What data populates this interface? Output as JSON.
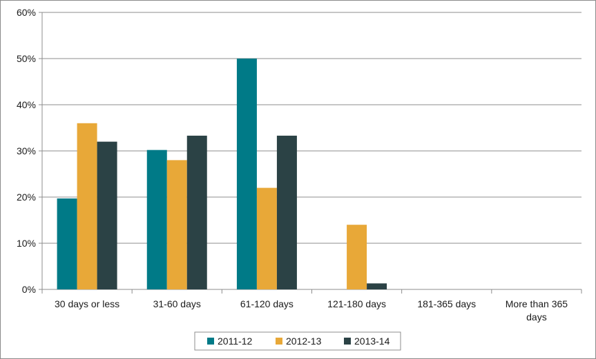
{
  "chart_data": {
    "type": "bar",
    "title": "",
    "xlabel": "",
    "ylabel": "",
    "ylim": [
      0,
      60
    ],
    "y_ticks": [
      "0%",
      "10%",
      "20%",
      "30%",
      "40%",
      "50%",
      "60%"
    ],
    "categories": [
      [
        "30 days or less"
      ],
      [
        "31-60 days"
      ],
      [
        "61-120 days"
      ],
      [
        "121-180 days"
      ],
      [
        "181-365 days"
      ],
      [
        "More than 365",
        "days"
      ]
    ],
    "series": [
      {
        "name": "2011-12",
        "color": "#007a87",
        "values": [
          19.7,
          30.2,
          50.0,
          0,
          0,
          0
        ]
      },
      {
        "name": "2012-13",
        "color": "#e8a838",
        "values": [
          36.0,
          28.0,
          22.0,
          14.0,
          0,
          0
        ]
      },
      {
        "name": "2013-14",
        "color": "#2b4245",
        "values": [
          32.0,
          33.3,
          33.3,
          1.3,
          0,
          0
        ]
      }
    ],
    "grid": true,
    "legend_position": "bottom"
  }
}
